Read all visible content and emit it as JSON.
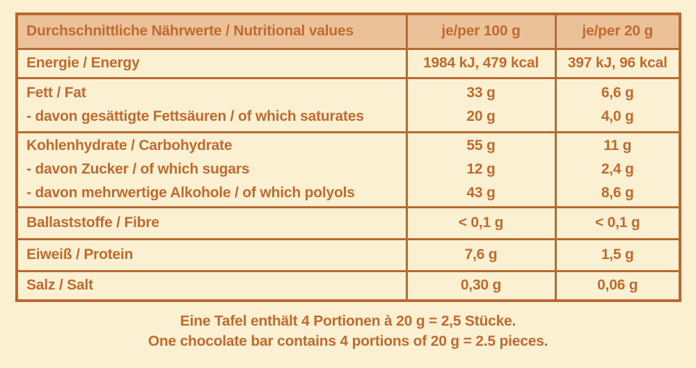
{
  "colors": {
    "background": "#FBF0D2",
    "header_bg": "#EBC199",
    "text": "#C16A2F",
    "border": "#B96831"
  },
  "table": {
    "header": {
      "nutrient": "Durchschnittliche Nährwerte / Nutritional values",
      "per_100g": "je/per 100 g",
      "per_20g": "je/per 20 g"
    },
    "rows": [
      {
        "lines": [
          {
            "label": "Energie / Energy",
            "per_100g": "1984 kJ, 479 kcal",
            "per_20g": "397 kJ, 96 kcal"
          }
        ]
      },
      {
        "lines": [
          {
            "label": "Fett / Fat",
            "per_100g": "33 g",
            "per_20g": "6,6 g"
          },
          {
            "label": "- davon gesättigte Fettsäuren / of which saturates",
            "per_100g": "20 g",
            "per_20g": "4,0 g"
          }
        ]
      },
      {
        "lines": [
          {
            "label": "Kohlenhydrate / Carbohydrate",
            "per_100g": "55 g",
            "per_20g": "11 g"
          },
          {
            "label": "- davon Zucker / of which sugars",
            "per_100g": "12 g",
            "per_20g": "2,4 g"
          },
          {
            "label": "- davon mehrwertige Alkohole / of which polyols",
            "per_100g": "43 g",
            "per_20g": "8,6 g"
          }
        ]
      },
      {
        "lines": [
          {
            "label": "Ballaststoffe / Fibre",
            "per_100g": "< 0,1 g",
            "per_20g": "< 0,1 g"
          }
        ]
      },
      {
        "lines": [
          {
            "label": "Eiweiß / Protein",
            "per_100g": "7,6 g",
            "per_20g": "1,5 g"
          }
        ]
      },
      {
        "lines": [
          {
            "label": "Salz / Salt",
            "per_100g": "0,30 g",
            "per_20g": "0,06 g"
          }
        ]
      }
    ]
  },
  "footer": {
    "line_de": "Eine Tafel enthält 4 Portionen à 20 g = 2,5 Stücke.",
    "line_en": "One chocolate bar contains 4 portions of 20 g = 2.5 pieces."
  }
}
